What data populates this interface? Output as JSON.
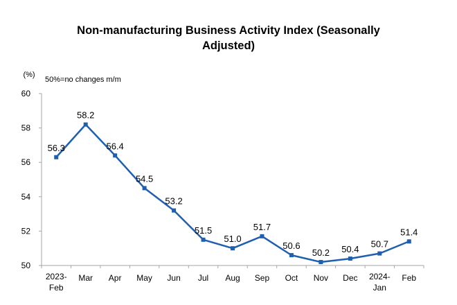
{
  "chart_data": {
    "type": "line",
    "title": "Non-manufacturing Business Activity Index (Seasonally Adjusted)",
    "unit_label": "(%)",
    "note": "50%=no changes m/m",
    "categories": [
      [
        "2023-",
        "Feb"
      ],
      [
        "Mar"
      ],
      [
        "Apr"
      ],
      [
        "May"
      ],
      [
        "Jun"
      ],
      [
        "Jul"
      ],
      [
        "Aug"
      ],
      [
        "Sep"
      ],
      [
        "Oct"
      ],
      [
        "Nov"
      ],
      [
        "Dec"
      ],
      [
        "2024-",
        "Jan"
      ],
      [
        "Feb"
      ]
    ],
    "series": [
      {
        "values": [
          56.3,
          58.2,
          56.4,
          54.5,
          53.2,
          51.5,
          51.0,
          51.7,
          50.6,
          50.2,
          50.4,
          50.7,
          51.4
        ],
        "labels": [
          "56.3",
          "58.2",
          "56.4",
          "54.5",
          "53.2",
          "51.5",
          "51.0",
          "51.7",
          "50.6",
          "50.2",
          "50.4",
          "50.7",
          "51.4"
        ],
        "color": "#1f5fb0"
      }
    ],
    "yticks": [
      "50",
      "52",
      "54",
      "56",
      "58",
      "60"
    ],
    "ylim": [
      50,
      60
    ],
    "grid": false,
    "legend": "none",
    "axis_color": "#a6a6a6"
  }
}
